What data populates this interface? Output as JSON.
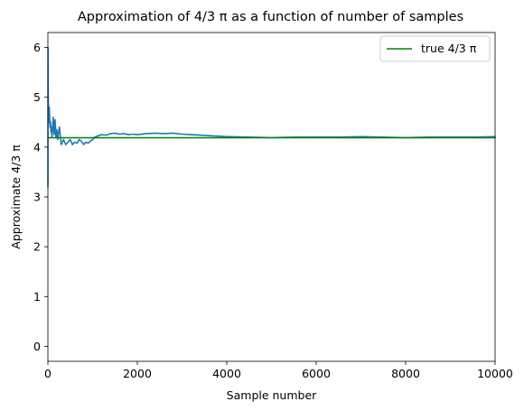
{
  "chart_data": {
    "type": "line",
    "title": "Approximation of 4/3 π as a function of number of samples",
    "xlabel": "Sample number",
    "ylabel": "Approximate 4/3 π",
    "xlim": [
      0,
      10000
    ],
    "ylim": [
      -0.3,
      6.3
    ],
    "xticks": [
      0,
      2000,
      4000,
      6000,
      8000,
      10000
    ],
    "xtick_labels": [
      "0",
      "2000",
      "4000",
      "6000",
      "8000",
      "10000"
    ],
    "yticks": [
      0,
      1,
      2,
      3,
      4,
      5,
      6
    ],
    "ytick_labels": [
      "0",
      "1",
      "2",
      "3",
      "4",
      "5",
      "6"
    ],
    "grid": false,
    "legend_position": "top-right",
    "series": [
      {
        "label": "",
        "color": "#1f77b4",
        "x": [
          1,
          3,
          6,
          10,
          15,
          20,
          30,
          40,
          50,
          60,
          70,
          80,
          90,
          100,
          120,
          140,
          160,
          180,
          200,
          220,
          240,
          260,
          280,
          300,
          350,
          400,
          450,
          500,
          550,
          600,
          650,
          700,
          750,
          800,
          850,
          900,
          950,
          1000,
          1050,
          1100,
          1200,
          1300,
          1400,
          1500,
          1600,
          1700,
          1800,
          1900,
          2000,
          2200,
          2400,
          2600,
          2800,
          3000,
          3200,
          3400,
          3600,
          3800,
          4000,
          4500,
          5000,
          5500,
          6000,
          6500,
          7000,
          7500,
          8000,
          8500,
          9000,
          9500,
          10000
        ],
        "y": [
          3.2,
          6.0,
          5.3,
          4.9,
          4.7,
          4.5,
          4.8,
          4.6,
          4.4,
          4.5,
          4.3,
          4.4,
          4.2,
          4.3,
          4.6,
          4.25,
          4.55,
          4.2,
          4.35,
          4.15,
          4.3,
          4.4,
          4.2,
          4.05,
          4.15,
          4.05,
          4.1,
          4.15,
          4.05,
          4.1,
          4.08,
          4.15,
          4.12,
          4.05,
          4.1,
          4.08,
          4.12,
          4.15,
          4.2,
          4.22,
          4.25,
          4.24,
          4.27,
          4.28,
          4.26,
          4.27,
          4.25,
          4.26,
          4.25,
          4.27,
          4.28,
          4.27,
          4.28,
          4.26,
          4.25,
          4.24,
          4.23,
          4.22,
          4.21,
          4.2,
          4.19,
          4.2,
          4.2,
          4.2,
          4.21,
          4.2,
          4.19,
          4.2,
          4.2,
          4.2,
          4.21
        ]
      },
      {
        "label": "true 4/3 π",
        "color": "#008000",
        "x": [
          0,
          10000
        ],
        "y": [
          4.18879,
          4.18879
        ]
      }
    ]
  }
}
